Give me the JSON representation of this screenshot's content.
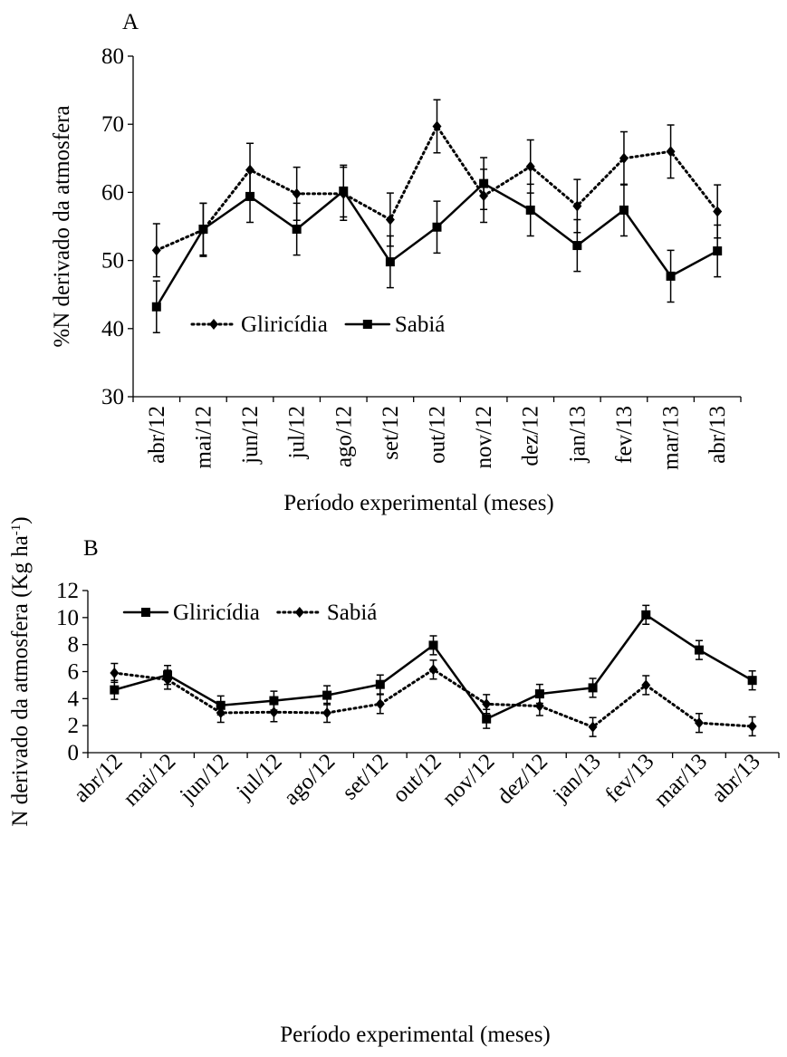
{
  "chart_data": [
    {
      "type": "line",
      "panel_label": "A",
      "ylabel": "%N derivado da atmosfera",
      "xlabel": "Período experimental (meses)",
      "categories": [
        "abr/12",
        "mai/12",
        "jun/12",
        "jul/12",
        "ago/12",
        "set/12",
        "out/12",
        "nov/12",
        "dez/12",
        "jan/13",
        "fev/13",
        "mar/13",
        "abr/13"
      ],
      "ylim": [
        30,
        80
      ],
      "yticks": [
        30,
        40,
        50,
        60,
        70,
        80
      ],
      "legend": "lower left",
      "x_label_rotation": -90,
      "series": [
        {
          "name": "Gliricídia",
          "color": "#000000",
          "line_style": "dotted",
          "marker": "diamond",
          "values": [
            51.5,
            54.5,
            63.3,
            59.8,
            59.8,
            56.0,
            69.7,
            59.5,
            63.8,
            58.0,
            65.0,
            66.0,
            57.2
          ],
          "errors": [
            3.9,
            3.9,
            3.9,
            3.9,
            3.9,
            3.9,
            3.9,
            3.9,
            3.9,
            3.9,
            3.9,
            3.9,
            3.9
          ]
        },
        {
          "name": "Sabiá",
          "color": "#000000",
          "line_style": "solid",
          "marker": "square",
          "values": [
            43.2,
            54.6,
            59.4,
            54.6,
            60.2,
            49.8,
            54.9,
            61.3,
            57.4,
            52.2,
            57.4,
            47.7,
            51.4
          ],
          "errors": [
            3.8,
            3.8,
            3.8,
            3.8,
            3.8,
            3.8,
            3.8,
            3.8,
            3.8,
            3.8,
            3.8,
            3.8,
            3.8
          ]
        }
      ]
    },
    {
      "type": "line",
      "panel_label": "B",
      "ylabel": [
        "N derivado da atmosfera (Kg ha",
        "-1",
        ")"
      ],
      "xlabel": "Período experimental (meses)",
      "categories": [
        "abr/12",
        "mai/12",
        "jun/12",
        "jul/12",
        "ago/12",
        "set/12",
        "out/12",
        "nov/12",
        "dez/12",
        "jan/13",
        "fev/13",
        "mar/13",
        "abr/13"
      ],
      "ylim": [
        0,
        12
      ],
      "yticks": [
        0,
        2,
        4,
        6,
        8,
        10,
        12
      ],
      "legend": "upper left",
      "x_label_rotation": -45,
      "series": [
        {
          "name": "Gliricídia",
          "color": "#000000",
          "line_style": "solid",
          "marker": "square",
          "values": [
            4.65,
            5.75,
            3.5,
            3.85,
            4.25,
            5.05,
            7.95,
            2.5,
            4.35,
            4.8,
            10.2,
            7.6,
            5.35
          ],
          "errors": [
            0.7,
            0.7,
            0.7,
            0.7,
            0.7,
            0.7,
            0.7,
            0.7,
            0.7,
            0.7,
            0.7,
            0.7,
            0.7
          ]
        },
        {
          "name": "Sabiá",
          "color": "#000000",
          "line_style": "dotted",
          "marker": "diamond",
          "values": [
            5.9,
            5.4,
            2.95,
            3.0,
            2.95,
            3.6,
            6.15,
            3.6,
            3.45,
            1.9,
            5.0,
            2.2,
            1.95
          ],
          "errors": [
            0.7,
            0.7,
            0.7,
            0.7,
            0.7,
            0.7,
            0.7,
            0.7,
            0.7,
            0.7,
            0.7,
            0.7,
            0.7
          ]
        }
      ]
    }
  ]
}
